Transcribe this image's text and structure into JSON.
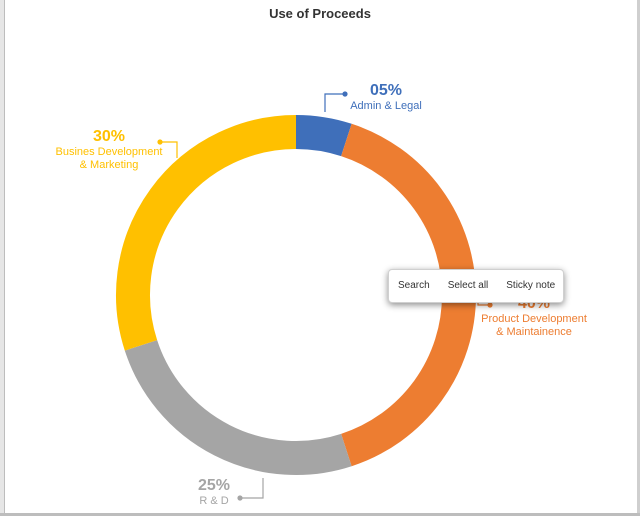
{
  "page": {
    "title": "Use of Proceeds"
  },
  "colors": {
    "admin": "#3f6fba",
    "product": "#ed7d31",
    "rnd": "#a5a5a5",
    "business": "#ffc000"
  },
  "chart_data": {
    "type": "pie",
    "style": "donut",
    "title": "Use of Proceeds",
    "slices": [
      {
        "label_lines": [
          "Admin & Legal"
        ],
        "value": 5,
        "pct_text": "05%",
        "color": "#3f6fba"
      },
      {
        "label_lines": [
          "Product Development",
          "& Maintainence"
        ],
        "value": 40,
        "pct_text": "40%",
        "color": "#ed7d31"
      },
      {
        "label_lines": [
          "R & D"
        ],
        "value": 25,
        "pct_text": "25%",
        "color": "#a5a5a5"
      },
      {
        "label_lines": [
          "Busines Development",
          "& Marketing"
        ],
        "value": 30,
        "pct_text": "30%",
        "color": "#ffc000"
      }
    ]
  },
  "labels": {
    "admin": {
      "pct": "05%",
      "name1": "Admin & Legal"
    },
    "product": {
      "pct": "40%",
      "name1": "Product Development",
      "name2": "& Maintainence"
    },
    "rnd": {
      "pct": "25%",
      "name1": "R & D"
    },
    "business": {
      "pct": "30%",
      "name1": "Busines Development",
      "name2": "& Marketing"
    }
  },
  "context_menu": {
    "items": [
      "Search",
      "Select all",
      "Sticky note"
    ]
  }
}
